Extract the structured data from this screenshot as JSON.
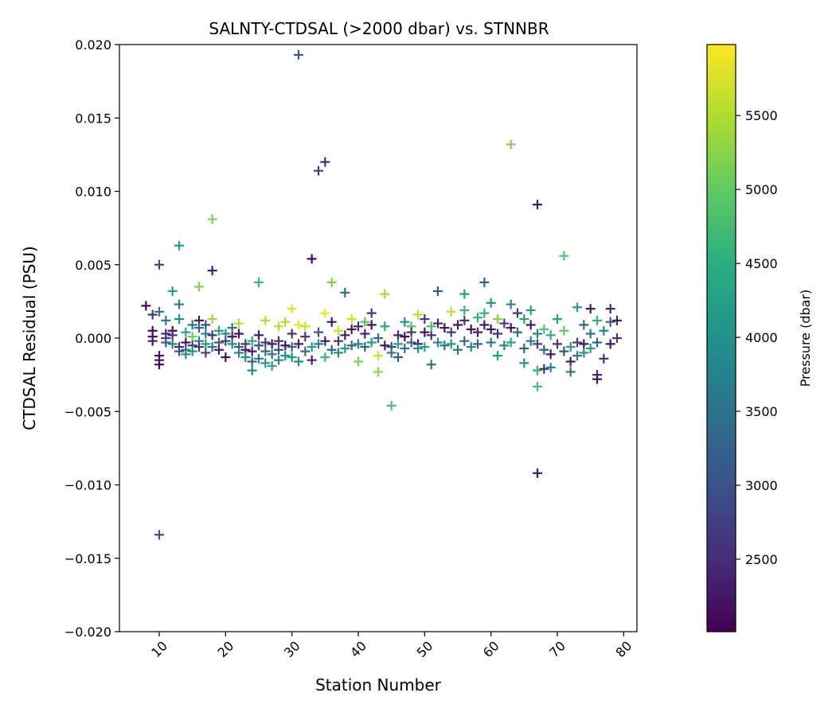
{
  "chart_data": {
    "type": "scatter",
    "title": "SALNTY-CTDSAL (>2000 dbar) vs. STNNBR",
    "xlabel": "Station Number",
    "ylabel": "CTDSAL Residual (PSU)",
    "xlim": [
      4,
      82
    ],
    "ylim": [
      -0.02,
      0.02
    ],
    "xticks": [
      10,
      20,
      30,
      40,
      50,
      60,
      70,
      80
    ],
    "yticks": [
      -0.02,
      -0.015,
      -0.01,
      -0.005,
      0.0,
      0.005,
      0.01,
      0.015,
      0.02
    ],
    "ytick_labels": [
      "−0.020",
      "−0.015",
      "−0.010",
      "−0.005",
      "0.000",
      "0.005",
      "0.010",
      "0.015",
      "0.020"
    ],
    "marker": "+",
    "grid": false,
    "colorbar": {
      "label": "Pressure (dbar)",
      "range": [
        2000,
        6000
      ],
      "ticks": [
        2500,
        3000,
        3500,
        4000,
        4500,
        5000,
        5500
      ],
      "colormap": "viridis"
    },
    "points": [
      {
        "x": 8,
        "y": 0.0022,
        "p": 2100
      },
      {
        "x": 9,
        "y": 0.0005,
        "p": 2150
      },
      {
        "x": 9,
        "y": 0.0001,
        "p": 2200
      },
      {
        "x": 9,
        "y": -0.0002,
        "p": 2300
      },
      {
        "x": 9,
        "y": 0.0016,
        "p": 2600
      },
      {
        "x": 10,
        "y": 0.005,
        "p": 2800
      },
      {
        "x": 10,
        "y": -0.0012,
        "p": 2300
      },
      {
        "x": 10,
        "y": -0.0015,
        "p": 2200
      },
      {
        "x": 10,
        "y": -0.0018,
        "p": 2100
      },
      {
        "x": 10,
        "y": 0.0018,
        "p": 3400
      },
      {
        "x": 10,
        "y": -0.0134,
        "p": 3000
      },
      {
        "x": 11,
        "y": 0.0003,
        "p": 2400
      },
      {
        "x": 11,
        "y": 0.0,
        "p": 2600
      },
      {
        "x": 11,
        "y": -0.0003,
        "p": 3200
      },
      {
        "x": 11,
        "y": 0.0012,
        "p": 3600
      },
      {
        "x": 12,
        "y": 0.0032,
        "p": 4200
      },
      {
        "x": 12,
        "y": 0.0005,
        "p": 2200
      },
      {
        "x": 12,
        "y": 0.0002,
        "p": 2500
      },
      {
        "x": 12,
        "y": -0.0004,
        "p": 3800
      },
      {
        "x": 13,
        "y": 0.0063,
        "p": 4300
      },
      {
        "x": 13,
        "y": 0.0023,
        "p": 3700
      },
      {
        "x": 13,
        "y": 0.0013,
        "p": 4000
      },
      {
        "x": 13,
        "y": -0.0006,
        "p": 2400
      },
      {
        "x": 13,
        "y": -0.0009,
        "p": 3000
      },
      {
        "x": 14,
        "y": -0.0003,
        "p": 2200
      },
      {
        "x": 14,
        "y": -0.0008,
        "p": 3300
      },
      {
        "x": 14,
        "y": -0.0011,
        "p": 3900
      },
      {
        "x": 14,
        "y": 0.0004,
        "p": 4400
      },
      {
        "x": 15,
        "y": 0.0001,
        "p": 5100
      },
      {
        "x": 15,
        "y": -0.0005,
        "p": 2700
      },
      {
        "x": 15,
        "y": 0.0009,
        "p": 3500
      },
      {
        "x": 15,
        "y": -0.0009,
        "p": 4100
      },
      {
        "x": 16,
        "y": 0.0035,
        "p": 5200
      },
      {
        "x": 16,
        "y": 0.0012,
        "p": 2300
      },
      {
        "x": 16,
        "y": 0.0007,
        "p": 3200
      },
      {
        "x": 16,
        "y": -0.0002,
        "p": 3700
      },
      {
        "x": 16,
        "y": -0.0006,
        "p": 2600
      },
      {
        "x": 17,
        "y": 0.0009,
        "p": 3000
      },
      {
        "x": 17,
        "y": 0.0003,
        "p": 3800
      },
      {
        "x": 17,
        "y": -0.0004,
        "p": 4200
      },
      {
        "x": 17,
        "y": -0.001,
        "p": 2800
      },
      {
        "x": 18,
        "y": 0.0081,
        "p": 5200
      },
      {
        "x": 18,
        "y": 0.0046,
        "p": 2300
      },
      {
        "x": 18,
        "y": 0.0013,
        "p": 5400
      },
      {
        "x": 18,
        "y": 0.0002,
        "p": 2500
      },
      {
        "x": 18,
        "y": -0.0006,
        "p": 3600
      },
      {
        "x": 19,
        "y": 0.0005,
        "p": 4300
      },
      {
        "x": 19,
        "y": -0.0003,
        "p": 3100
      },
      {
        "x": 19,
        "y": -0.0008,
        "p": 2400
      },
      {
        "x": 20,
        "y": -0.0002,
        "p": 2700
      },
      {
        "x": 20,
        "y": -0.0013,
        "p": 2200
      },
      {
        "x": 20,
        "y": 0.0003,
        "p": 3900
      },
      {
        "x": 21,
        "y": 0.0007,
        "p": 3500
      },
      {
        "x": 21,
        "y": 0.0001,
        "p": 2300
      },
      {
        "x": 21,
        "y": -0.0004,
        "p": 4000
      },
      {
        "x": 22,
        "y": 0.001,
        "p": 5500
      },
      {
        "x": 22,
        "y": 0.0003,
        "p": 2200
      },
      {
        "x": 22,
        "y": -0.0006,
        "p": 3100
      },
      {
        "x": 22,
        "y": -0.001,
        "p": 3700
      },
      {
        "x": 23,
        "y": -0.0008,
        "p": 2300
      },
      {
        "x": 23,
        "y": -0.0013,
        "p": 4100
      },
      {
        "x": 23,
        "y": -0.0004,
        "p": 2800
      },
      {
        "x": 24,
        "y": -0.0022,
        "p": 3900
      },
      {
        "x": 24,
        "y": -0.0016,
        "p": 3300
      },
      {
        "x": 24,
        "y": -0.0009,
        "p": 2400
      },
      {
        "x": 24,
        "y": -0.0002,
        "p": 4500
      },
      {
        "x": 25,
        "y": 0.0038,
        "p": 4700
      },
      {
        "x": 25,
        "y": 0.0002,
        "p": 2200
      },
      {
        "x": 25,
        "y": -0.0005,
        "p": 3000
      },
      {
        "x": 25,
        "y": -0.0014,
        "p": 3600
      },
      {
        "x": 26,
        "y": 0.0012,
        "p": 5600
      },
      {
        "x": 26,
        "y": -0.0003,
        "p": 2700
      },
      {
        "x": 26,
        "y": -0.0009,
        "p": 3400
      },
      {
        "x": 26,
        "y": -0.0017,
        "p": 4200
      },
      {
        "x": 27,
        "y": -0.0004,
        "p": 2300
      },
      {
        "x": 27,
        "y": -0.0011,
        "p": 3500
      },
      {
        "x": 27,
        "y": -0.0019,
        "p": 4300
      },
      {
        "x": 28,
        "y": 0.0008,
        "p": 5600
      },
      {
        "x": 28,
        "y": -0.0002,
        "p": 2500
      },
      {
        "x": 28,
        "y": -0.0008,
        "p": 3100
      },
      {
        "x": 28,
        "y": -0.0015,
        "p": 3800
      },
      {
        "x": 29,
        "y": 0.0011,
        "p": 5500
      },
      {
        "x": 29,
        "y": -0.0005,
        "p": 2200
      },
      {
        "x": 29,
        "y": -0.0012,
        "p": 4000
      },
      {
        "x": 30,
        "y": 0.002,
        "p": 5800
      },
      {
        "x": 30,
        "y": 0.0003,
        "p": 2600
      },
      {
        "x": 30,
        "y": -0.0006,
        "p": 3300
      },
      {
        "x": 30,
        "y": -0.0013,
        "p": 4100
      },
      {
        "x": 31,
        "y": 0.0193,
        "p": 3100
      },
      {
        "x": 31,
        "y": 0.0009,
        "p": 5900
      },
      {
        "x": 31,
        "y": -0.0004,
        "p": 2300
      },
      {
        "x": 31,
        "y": -0.0016,
        "p": 3900
      },
      {
        "x": 32,
        "y": 0.0008,
        "p": 5700
      },
      {
        "x": 32,
        "y": 0.0001,
        "p": 2700
      },
      {
        "x": 32,
        "y": -0.0009,
        "p": 3500
      },
      {
        "x": 33,
        "y": 0.0054,
        "p": 2150
      },
      {
        "x": 33,
        "y": -0.0015,
        "p": 2400
      },
      {
        "x": 33,
        "y": -0.0006,
        "p": 4200
      },
      {
        "x": 34,
        "y": 0.0114,
        "p": 2700
      },
      {
        "x": 34,
        "y": 0.0004,
        "p": 3000
      },
      {
        "x": 34,
        "y": -0.0004,
        "p": 3700
      },
      {
        "x": 35,
        "y": 0.012,
        "p": 2500
      },
      {
        "x": 35,
        "y": 0.0017,
        "p": 5900
      },
      {
        "x": 35,
        "y": -0.0013,
        "p": 4700
      },
      {
        "x": 35,
        "y": -0.0002,
        "p": 2300
      },
      {
        "x": 36,
        "y": 0.0038,
        "p": 5200
      },
      {
        "x": 36,
        "y": 0.0011,
        "p": 2200
      },
      {
        "x": 36,
        "y": -0.0008,
        "p": 3400
      },
      {
        "x": 37,
        "y": 0.0005,
        "p": 5700
      },
      {
        "x": 37,
        "y": -0.0002,
        "p": 2600
      },
      {
        "x": 37,
        "y": -0.001,
        "p": 3900
      },
      {
        "x": 38,
        "y": 0.0031,
        "p": 3400
      },
      {
        "x": 38,
        "y": 0.0002,
        "p": 2300
      },
      {
        "x": 38,
        "y": -0.0007,
        "p": 4100
      },
      {
        "x": 39,
        "y": 0.0013,
        "p": 5700
      },
      {
        "x": 39,
        "y": 0.0006,
        "p": 2200
      },
      {
        "x": 39,
        "y": -0.0005,
        "p": 3300
      },
      {
        "x": 40,
        "y": -0.0016,
        "p": 5200
      },
      {
        "x": 40,
        "y": 0.0008,
        "p": 2500
      },
      {
        "x": 40,
        "y": -0.0004,
        "p": 3800
      },
      {
        "x": 41,
        "y": 0.0011,
        "p": 4900
      },
      {
        "x": 41,
        "y": 0.0003,
        "p": 2400
      },
      {
        "x": 41,
        "y": -0.0006,
        "p": 3200
      },
      {
        "x": 42,
        "y": 0.0017,
        "p": 2600
      },
      {
        "x": 42,
        "y": 0.0009,
        "p": 2200
      },
      {
        "x": 42,
        "y": -0.0003,
        "p": 4200
      },
      {
        "x": 43,
        "y": -0.0023,
        "p": 5300
      },
      {
        "x": 43,
        "y": -0.0012,
        "p": 5700
      },
      {
        "x": 43,
        "y": 0.0,
        "p": 3500
      },
      {
        "x": 44,
        "y": 0.003,
        "p": 5500
      },
      {
        "x": 44,
        "y": 0.0008,
        "p": 4400
      },
      {
        "x": 44,
        "y": -0.0005,
        "p": 2300
      },
      {
        "x": 45,
        "y": -0.0046,
        "p": 4800
      },
      {
        "x": 45,
        "y": -0.0006,
        "p": 2700
      },
      {
        "x": 45,
        "y": -0.001,
        "p": 3600
      },
      {
        "x": 46,
        "y": -0.0013,
        "p": 3200
      },
      {
        "x": 46,
        "y": 0.0002,
        "p": 2400
      },
      {
        "x": 46,
        "y": -0.0004,
        "p": 4300
      },
      {
        "x": 47,
        "y": 0.0011,
        "p": 4100
      },
      {
        "x": 47,
        "y": 0.0001,
        "p": 2200
      },
      {
        "x": 47,
        "y": -0.0007,
        "p": 3500
      },
      {
        "x": 48,
        "y": 0.0008,
        "p": 5000
      },
      {
        "x": 48,
        "y": 0.0004,
        "p": 2600
      },
      {
        "x": 48,
        "y": -0.0003,
        "p": 3300
      },
      {
        "x": 49,
        "y": 0.0016,
        "p": 5600
      },
      {
        "x": 49,
        "y": -0.0004,
        "p": 2300
      },
      {
        "x": 49,
        "y": -0.0007,
        "p": 4000
      },
      {
        "x": 50,
        "y": 0.0013,
        "p": 2700
      },
      {
        "x": 50,
        "y": 0.0004,
        "p": 2200
      },
      {
        "x": 50,
        "y": -0.0006,
        "p": 4400
      },
      {
        "x": 51,
        "y": -0.0018,
        "p": 3400
      },
      {
        "x": 51,
        "y": 0.0002,
        "p": 2500
      },
      {
        "x": 51,
        "y": 0.0008,
        "p": 4800
      },
      {
        "x": 52,
        "y": 0.0032,
        "p": 3100
      },
      {
        "x": 52,
        "y": 0.001,
        "p": 2300
      },
      {
        "x": 52,
        "y": -0.0003,
        "p": 3900
      },
      {
        "x": 53,
        "y": 0.0007,
        "p": 2200
      },
      {
        "x": 53,
        "y": -0.0005,
        "p": 3600
      },
      {
        "x": 54,
        "y": 0.0018,
        "p": 5600
      },
      {
        "x": 54,
        "y": 0.0004,
        "p": 2700
      },
      {
        "x": 54,
        "y": -0.0004,
        "p": 4100
      },
      {
        "x": 55,
        "y": 0.0009,
        "p": 2300
      },
      {
        "x": 55,
        "y": -0.0008,
        "p": 3500
      },
      {
        "x": 56,
        "y": 0.003,
        "p": 4200
      },
      {
        "x": 56,
        "y": 0.0019,
        "p": 4700
      },
      {
        "x": 56,
        "y": 0.0012,
        "p": 2600
      },
      {
        "x": 56,
        "y": -0.0002,
        "p": 3300
      },
      {
        "x": 57,
        "y": 0.0006,
        "p": 2200
      },
      {
        "x": 57,
        "y": -0.0006,
        "p": 3800
      },
      {
        "x": 58,
        "y": 0.0014,
        "p": 4500
      },
      {
        "x": 58,
        "y": 0.0004,
        "p": 2400
      },
      {
        "x": 58,
        "y": -0.0004,
        "p": 3200
      },
      {
        "x": 59,
        "y": 0.0038,
        "p": 3300
      },
      {
        "x": 59,
        "y": 0.0017,
        "p": 4600
      },
      {
        "x": 59,
        "y": 0.0009,
        "p": 2300
      },
      {
        "x": 60,
        "y": 0.0024,
        "p": 4000
      },
      {
        "x": 60,
        "y": 0.0006,
        "p": 2200
      },
      {
        "x": 60,
        "y": -0.0003,
        "p": 3600
      },
      {
        "x": 61,
        "y": -0.0012,
        "p": 4200
      },
      {
        "x": 61,
        "y": 0.0013,
        "p": 5300
      },
      {
        "x": 61,
        "y": 0.0003,
        "p": 2500
      },
      {
        "x": 62,
        "y": 0.001,
        "p": 2700
      },
      {
        "x": 62,
        "y": -0.0005,
        "p": 3900
      },
      {
        "x": 63,
        "y": 0.0132,
        "p": 5200
      },
      {
        "x": 63,
        "y": 0.0023,
        "p": 3800
      },
      {
        "x": 63,
        "y": 0.0007,
        "p": 2200
      },
      {
        "x": 63,
        "y": -0.0003,
        "p": 4400
      },
      {
        "x": 64,
        "y": 0.0017,
        "p": 2600
      },
      {
        "x": 64,
        "y": 0.0004,
        "p": 3400
      },
      {
        "x": 65,
        "y": -0.0017,
        "p": 4100
      },
      {
        "x": 65,
        "y": 0.0013,
        "p": 4400
      },
      {
        "x": 65,
        "y": -0.0007,
        "p": 3200
      },
      {
        "x": 66,
        "y": 0.0019,
        "p": 4200
      },
      {
        "x": 66,
        "y": 0.0009,
        "p": 2300
      },
      {
        "x": 66,
        "y": -0.0002,
        "p": 3700
      },
      {
        "x": 67,
        "y": 0.0091,
        "p": 2300
      },
      {
        "x": 67,
        "y": -0.0092,
        "p": 2300
      },
      {
        "x": 67,
        "y": -0.0022,
        "p": 4600
      },
      {
        "x": 67,
        "y": -0.0033,
        "p": 4800
      },
      {
        "x": 67,
        "y": -0.0004,
        "p": 2700
      },
      {
        "x": 67,
        "y": 0.0003,
        "p": 3900
      },
      {
        "x": 68,
        "y": -0.0021,
        "p": 2500
      },
      {
        "x": 68,
        "y": 0.0006,
        "p": 4900
      },
      {
        "x": 68,
        "y": -0.0008,
        "p": 3300
      },
      {
        "x": 69,
        "y": -0.002,
        "p": 3800
      },
      {
        "x": 69,
        "y": -0.0011,
        "p": 2200
      },
      {
        "x": 69,
        "y": 0.0002,
        "p": 4500
      },
      {
        "x": 70,
        "y": 0.0013,
        "p": 4300
      },
      {
        "x": 70,
        "y": -0.0004,
        "p": 2600
      },
      {
        "x": 71,
        "y": 0.0056,
        "p": 4900
      },
      {
        "x": 71,
        "y": 0.0005,
        "p": 5000
      },
      {
        "x": 71,
        "y": -0.0009,
        "p": 3000
      },
      {
        "x": 72,
        "y": -0.0023,
        "p": 3400
      },
      {
        "x": 72,
        "y": -0.0016,
        "p": 2300
      },
      {
        "x": 72,
        "y": -0.0006,
        "p": 4200
      },
      {
        "x": 73,
        "y": 0.0021,
        "p": 4300
      },
      {
        "x": 73,
        "y": -0.0012,
        "p": 3700
      },
      {
        "x": 73,
        "y": -0.0003,
        "p": 2700
      },
      {
        "x": 74,
        "y": 0.0009,
        "p": 3200
      },
      {
        "x": 74,
        "y": -0.0004,
        "p": 2200
      },
      {
        "x": 74,
        "y": -0.001,
        "p": 4000
      },
      {
        "x": 75,
        "y": 0.002,
        "p": 2300
      },
      {
        "x": 75,
        "y": 0.0003,
        "p": 3500
      },
      {
        "x": 75,
        "y": -0.0007,
        "p": 4300
      },
      {
        "x": 76,
        "y": -0.0025,
        "p": 2600
      },
      {
        "x": 76,
        "y": -0.0028,
        "p": 2200
      },
      {
        "x": 76,
        "y": 0.0012,
        "p": 4600
      },
      {
        "x": 76,
        "y": -0.0003,
        "p": 3300
      },
      {
        "x": 77,
        "y": -0.0014,
        "p": 2500
      },
      {
        "x": 77,
        "y": 0.0005,
        "p": 3800
      },
      {
        "x": 78,
        "y": 0.002,
        "p": 2400
      },
      {
        "x": 78,
        "y": 0.0011,
        "p": 3100
      },
      {
        "x": 78,
        "y": -0.0004,
        "p": 2200
      },
      {
        "x": 79,
        "y": 0.0012,
        "p": 2300
      },
      {
        "x": 79,
        "y": 0.0,
        "p": 2600
      }
    ]
  }
}
